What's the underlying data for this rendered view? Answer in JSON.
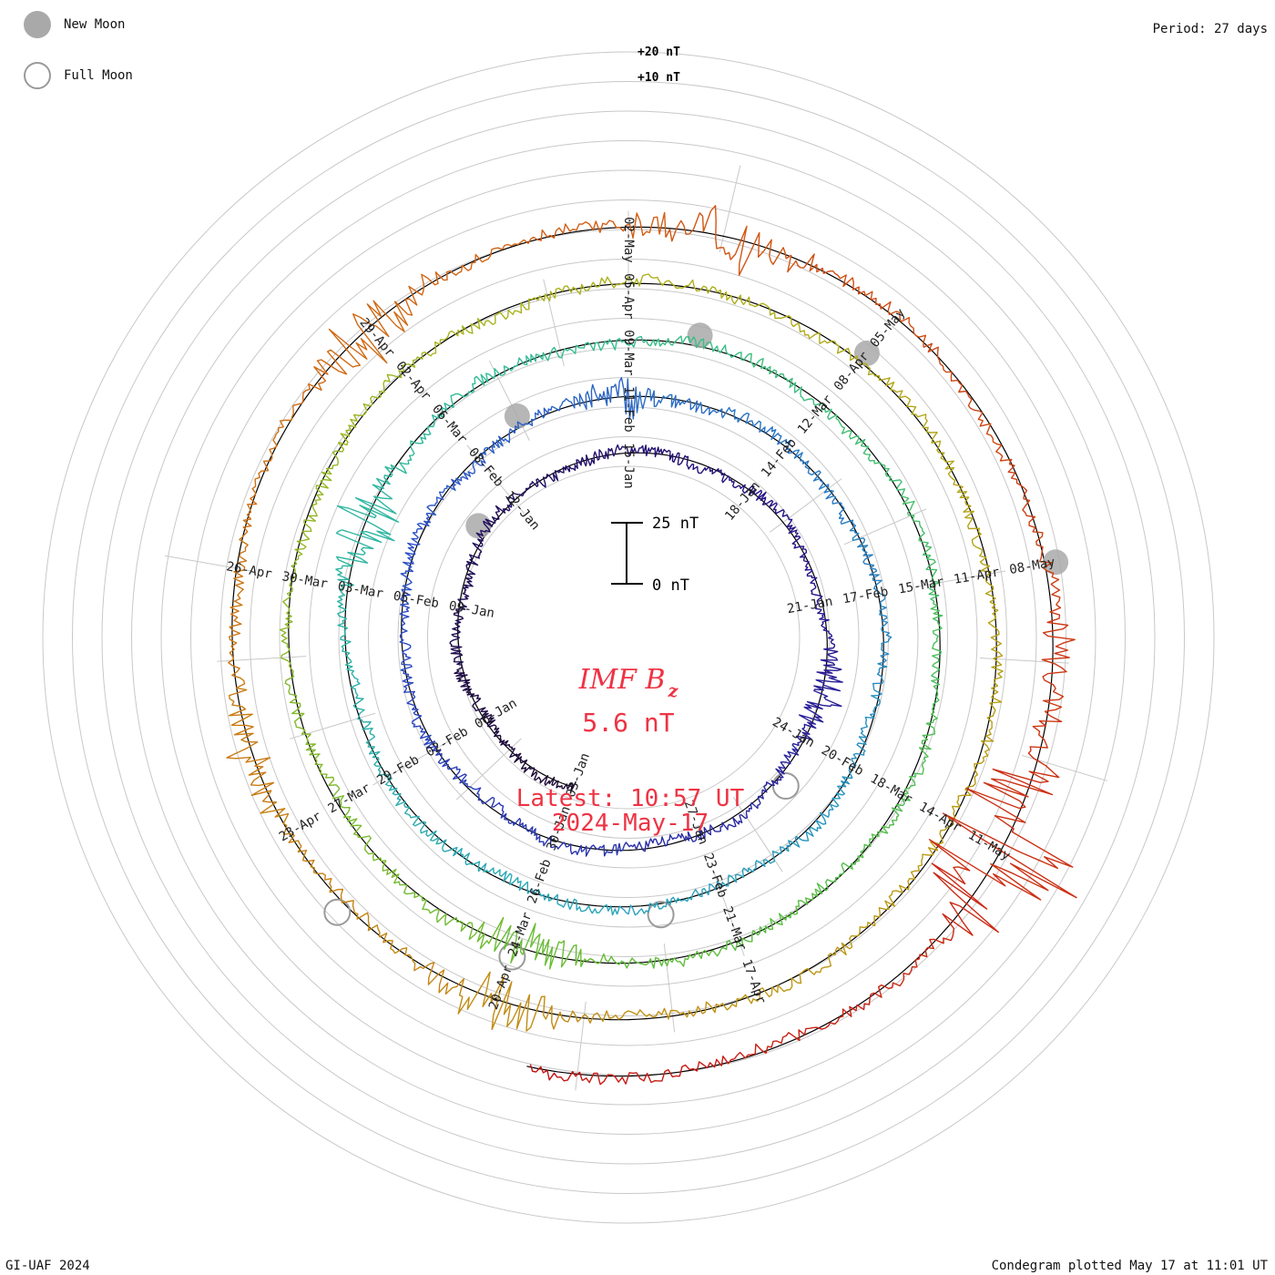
{
  "legend": {
    "new_moon": "New Moon",
    "full_moon": "Full Moon",
    "new_moon_color": "#a9a9a9",
    "full_moon_color": "#9a9a9a"
  },
  "period_label": "Period: 27 days",
  "credit": "GI-UAF 2024",
  "plotted_label": "Condegram plotted May 17 at 11:01 UT",
  "chart_data": {
    "type": "line",
    "chart_style": "condegram spiral",
    "title_main": "IMF B",
    "title_sub": "z",
    "current_value": "5.6 nT",
    "latest_line1": "Latest: 10:57 UT",
    "latest_line2": "2024-May-17",
    "scale_bar": {
      "top_label": "25 nT",
      "bottom_label": "0 nT",
      "range_nT": [
        0,
        25
      ]
    },
    "outer_ring_labels": {
      "plus20": "+20 nT",
      "plus10": "+10 nT"
    },
    "period_days": 27,
    "start_date": "2024-01-03",
    "end_date": "2024-05-17",
    "date_labels": [
      "03-Jan",
      "06-Jan",
      "09-Jan",
      "12-Jan",
      "15-Jan",
      "18-Jan",
      "21-Jan",
      "24-Jan",
      "27-Jan",
      "30-Jan",
      "02-Feb",
      "05-Feb",
      "08-Feb",
      "11-Feb",
      "14-Feb",
      "17-Feb",
      "20-Feb",
      "23-Feb",
      "26-Feb",
      "29-Feb",
      "03-Mar",
      "06-Mar",
      "09-Mar",
      "12-Mar",
      "15-Mar",
      "18-Mar",
      "21-Mar",
      "24-Mar",
      "27-Mar",
      "30-Mar",
      "02-Apr",
      "05-Apr",
      "08-Apr",
      "11-Apr",
      "14-Apr",
      "17-Apr",
      "20-Apr",
      "23-Apr",
      "26-Apr",
      "29-Apr",
      "02-May",
      "05-May",
      "08-May",
      "11-May"
    ],
    "date_label_day_offset": [
      0,
      3,
      6,
      9,
      12,
      15,
      18,
      21,
      24,
      27,
      30,
      33,
      36,
      39,
      42,
      45,
      48,
      51,
      54,
      57,
      60,
      63,
      66,
      69,
      72,
      75,
      78,
      81,
      84,
      87,
      90,
      93,
      96,
      99,
      102,
      105,
      108,
      111,
      114,
      117,
      120,
      123,
      126,
      129
    ],
    "new_moon_day_offset": [
      8,
      37,
      67,
      96,
      126
    ],
    "full_moon_day_offset": [
      22,
      52,
      81,
      110
    ],
    "bz_events": [
      {
        "day": 20,
        "amplitude_nT": 8
      },
      {
        "day": 39,
        "amplitude_nT": 10
      },
      {
        "day": 61,
        "amplitude_nT": 16
      },
      {
        "day": 81,
        "amplitude_nT": 12
      },
      {
        "day": 108,
        "amplitude_nT": 12
      },
      {
        "day": 112,
        "amplitude_nT": 8
      },
      {
        "day": 117,
        "amplitude_nT": 14
      },
      {
        "day": 121,
        "amplitude_nT": 15
      },
      {
        "day": 127,
        "amplitude_nT": 8
      },
      {
        "day": 129,
        "amplitude_nT": 40
      }
    ],
    "grid": true
  }
}
